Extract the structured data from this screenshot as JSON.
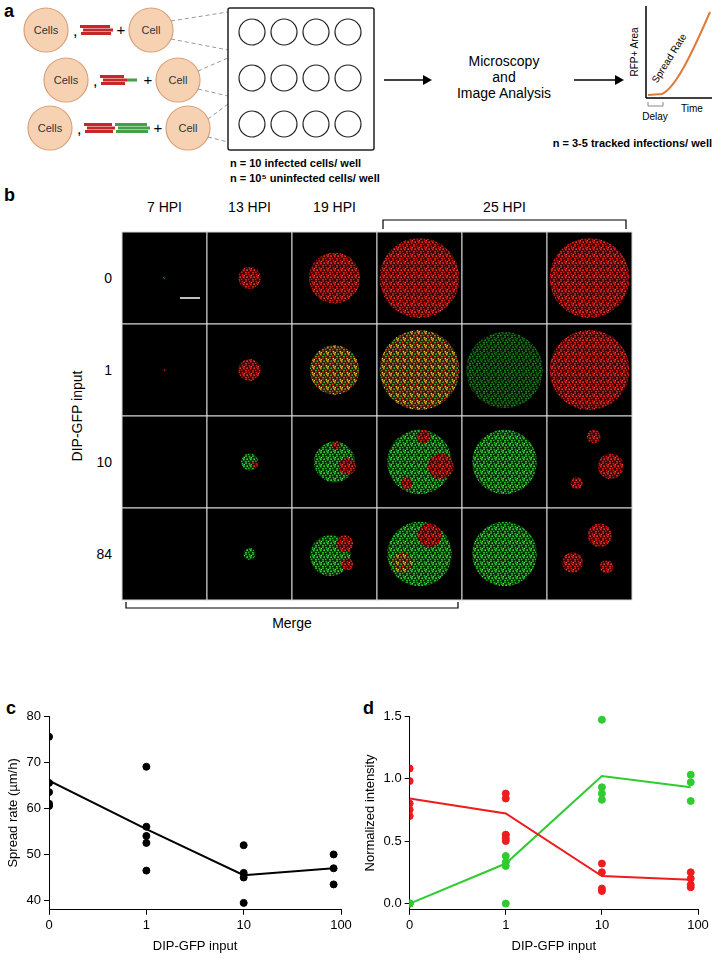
{
  "figure": {
    "a": {
      "label": "a",
      "inocula": [
        {
          "donor": "Cells",
          "separator": ",",
          "join": "+",
          "target": "Cell"
        },
        {
          "donor": "Cells",
          "separator": ",",
          "join": "+",
          "target": "Cell"
        },
        {
          "donor": "Cells",
          "separator": ",",
          "join": "+",
          "target": "Cell"
        }
      ],
      "plate_notes": [
        "n = 10 infected cells/ well",
        "n = 10⁵ uninfected cells/ well"
      ],
      "analysis": [
        "Microscopy",
        "and",
        "Image Analysis"
      ],
      "sketch": {
        "y_label": "RFP+ Area",
        "x_label": "Time",
        "slope_label": "Spread Rate",
        "lag_label": "Delay"
      },
      "tracking_note": "n = 3-5 tracked infections/ well"
    },
    "b": {
      "label": "b",
      "time_points": [
        "7 HPI",
        "13 HPI",
        "19 HPI",
        "25 HPI"
      ],
      "row_title": "DIP-GFP input",
      "rows": [
        "0",
        "1",
        "10",
        "84"
      ],
      "merge_label": "Merge"
    }
  },
  "chart_data": [
    {
      "type": "scatter",
      "label": "c",
      "x_label": "DIP-GFP input",
      "y_label": "Spread rate (µm/h)",
      "log": "x",
      "grid": false,
      "xlim": [
        0,
        100
      ],
      "xticks": [
        0,
        1,
        10,
        100
      ],
      "ylim": [
        38,
        80
      ],
      "yticks": [
        40,
        50,
        60,
        70,
        80
      ],
      "series": [
        {
          "type": "scatter",
          "color": "#000000",
          "marker": "circle",
          "x": [
            0,
            0,
            0,
            0,
            0,
            1,
            1,
            1,
            1,
            1,
            10,
            10,
            10,
            10,
            84,
            84,
            84
          ],
          "values": [
            75.5,
            65.5,
            63.5,
            61,
            60.5,
            69,
            56,
            54,
            52.5,
            46.5,
            52,
            46,
            45,
            39.5,
            50,
            47,
            43.5
          ]
        },
        {
          "type": "line",
          "color": "#000000",
          "line_style": "solid",
          "x": [
            0,
            1,
            10,
            84
          ],
          "values": [
            66,
            55.5,
            45.5,
            47
          ]
        }
      ]
    },
    {
      "type": "scatter",
      "label": "d",
      "x_label": "DIP-GFP input",
      "y_label": "Normalized intensity",
      "log": "x",
      "grid": false,
      "xlim": [
        0,
        100
      ],
      "xticks": [
        0,
        1,
        10,
        100
      ],
      "ylim": [
        -0.05,
        1.5
      ],
      "yticks": [
        {
          "value": 0,
          "label": "0.0"
        },
        0.5,
        {
          "value": 1,
          "label": "1.0"
        },
        1.5
      ],
      "series": [
        {
          "type": "scatter",
          "color": "#ee1c1c",
          "marker": "circle",
          "x": [
            0,
            0,
            0,
            0,
            0,
            1,
            1,
            1,
            1,
            1,
            10,
            10,
            10,
            10,
            84,
            84,
            84,
            84
          ],
          "values": [
            1.08,
            0.98,
            0.8,
            0.75,
            0.7,
            0.88,
            0.84,
            0.55,
            0.52,
            0.5,
            0.32,
            0.25,
            0.12,
            0.1,
            0.25,
            0.2,
            0.15,
            0.13
          ]
        },
        {
          "type": "scatter",
          "color": "#2ecc2e",
          "marker": "circle",
          "x": [
            0,
            0,
            0,
            0,
            0,
            1,
            1,
            1,
            1,
            1,
            10,
            10,
            10,
            10,
            84,
            84,
            84
          ],
          "values": [
            0,
            0,
            0,
            0,
            0,
            0.55,
            0.38,
            0.33,
            0.3,
            0,
            1.47,
            0.93,
            0.88,
            0.83,
            1.03,
            0.97,
            0.82
          ]
        },
        {
          "type": "line",
          "color": "#ee1c1c",
          "line_style": "solid",
          "x": [
            0,
            1,
            10,
            84
          ],
          "values": [
            0.84,
            0.72,
            0.22,
            0.19
          ]
        },
        {
          "type": "line",
          "color": "#2ecc2e",
          "line_style": "solid",
          "x": [
            0,
            1,
            10,
            84
          ],
          "values": [
            0,
            0.32,
            1.02,
            0.93
          ]
        }
      ]
    }
  ]
}
